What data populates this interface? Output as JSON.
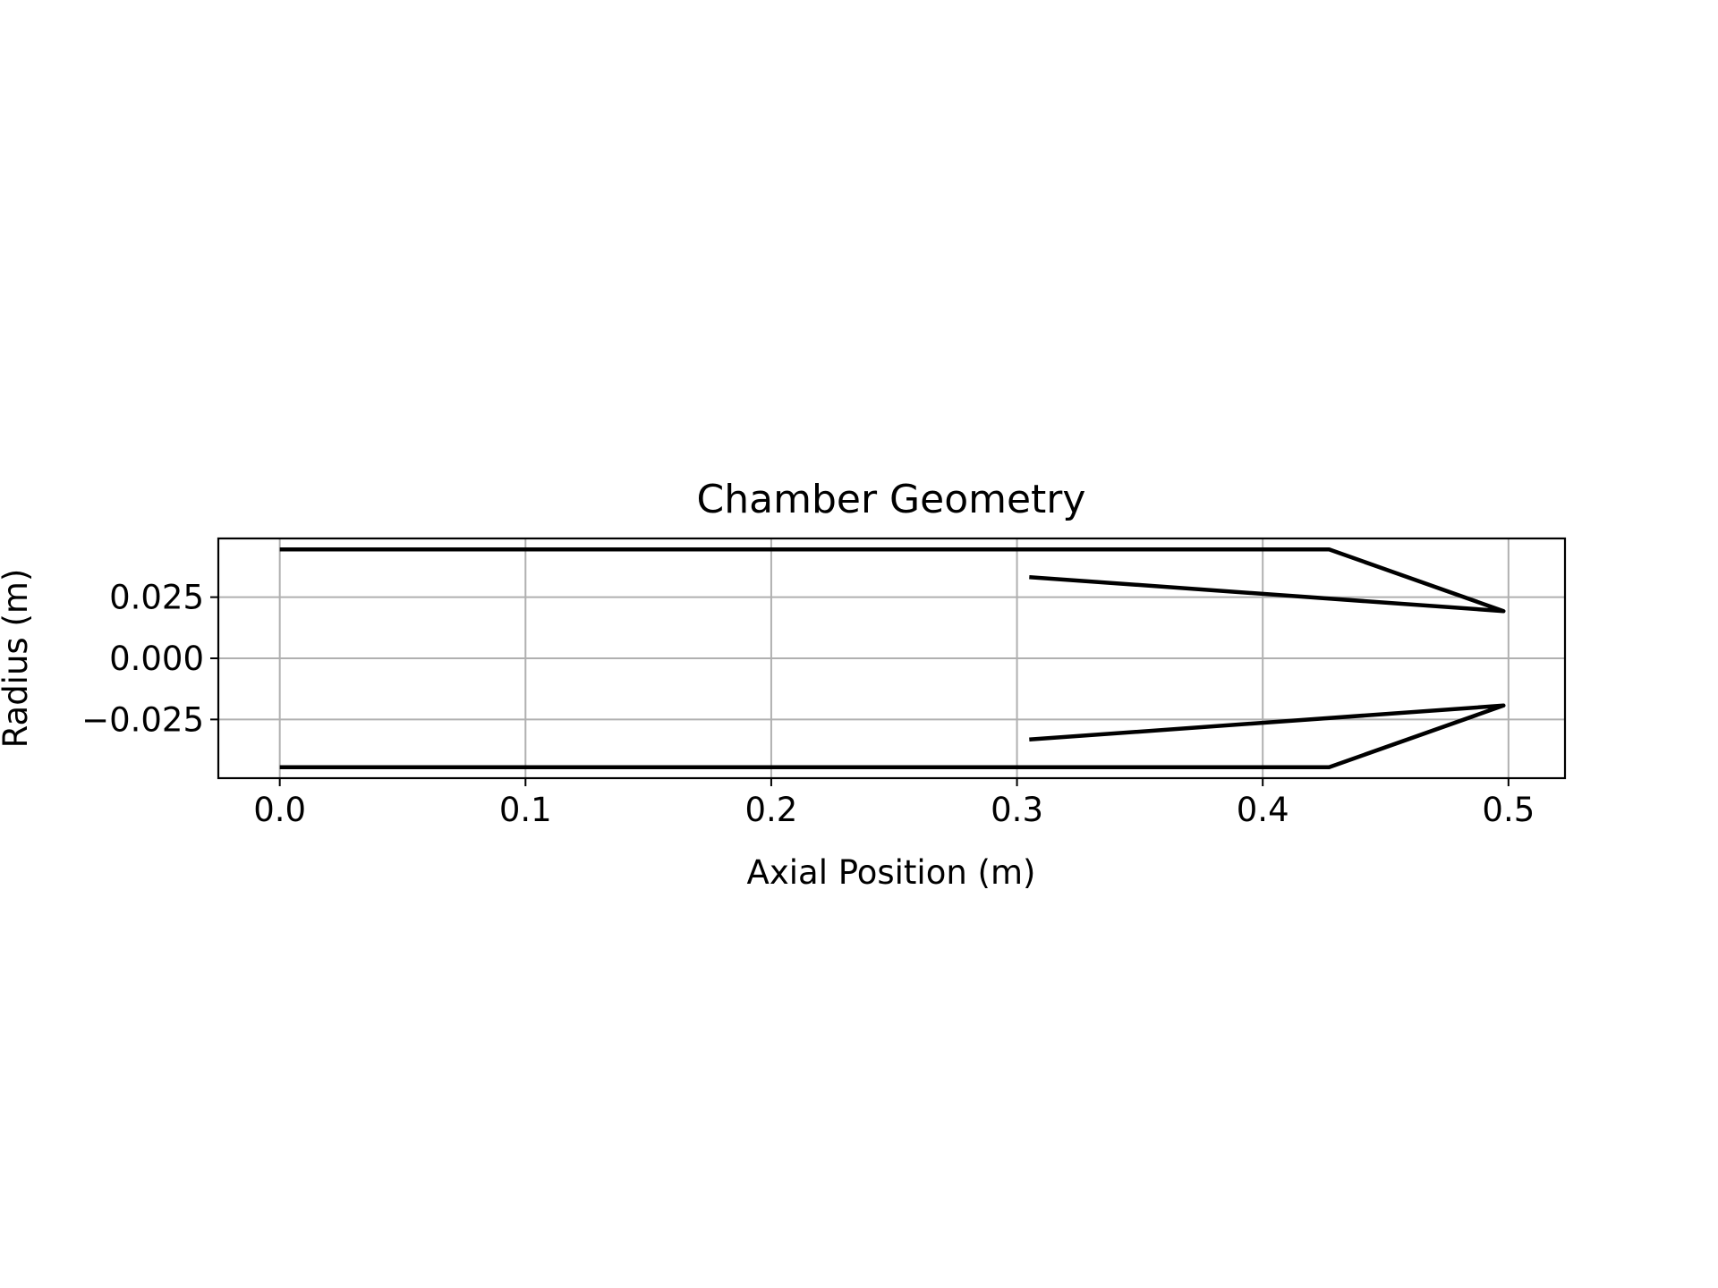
{
  "chart_data": {
    "type": "line",
    "title": "Chamber Geometry",
    "xlabel": "Axial Position (m)",
    "ylabel": "Radius (m)",
    "xlim": [
      -0.025,
      0.523
    ],
    "ylim": [
      -0.049,
      0.049
    ],
    "xticks": [
      0.0,
      0.1,
      0.2,
      0.3,
      0.4,
      0.5
    ],
    "xtick_labels": [
      "0.0",
      "0.1",
      "0.2",
      "0.3",
      "0.4",
      "0.5"
    ],
    "yticks": [
      0.025,
      0.0,
      -0.025
    ],
    "ytick_labels": [
      "0.025",
      "0.000",
      "−0.025"
    ],
    "grid": true,
    "series": [
      {
        "x": [
          0.0,
          0.427,
          0.498,
          0.305
        ],
        "y": [
          0.0445,
          0.0445,
          0.0193,
          0.0332
        ],
        "color": "#000000"
      },
      {
        "x": [
          0.0,
          0.427,
          0.498,
          0.305
        ],
        "y": [
          -0.0445,
          -0.0445,
          -0.0193,
          -0.0332
        ],
        "color": "#000000"
      }
    ]
  }
}
